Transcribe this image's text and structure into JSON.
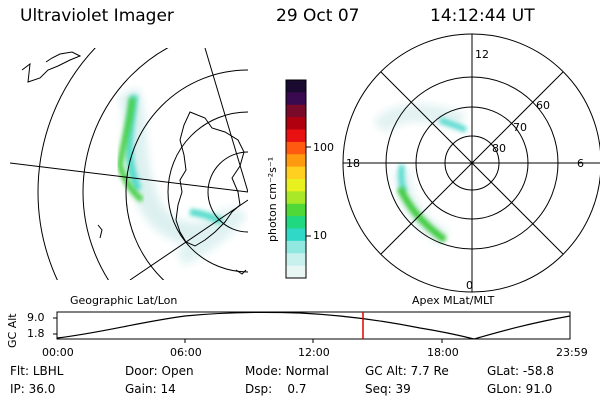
{
  "header": {
    "instrument": "Ultraviolet Imager",
    "date": "29 Oct 07",
    "time": "14:12:44 UT"
  },
  "left_map": {
    "label": "Geographic Lat/Lon"
  },
  "right_map": {
    "label": "Apex MLat/MLT",
    "mlt_labels": [
      "12",
      "18",
      "6",
      "0"
    ],
    "lat_labels": [
      "60",
      "70",
      "80"
    ]
  },
  "colorbar": {
    "unit_label": "photon cm⁻²s⁻¹",
    "ticks": [
      "100",
      "10"
    ],
    "colors": [
      "#1a0a30",
      "#3a0a50",
      "#7a0a2a",
      "#b00010",
      "#e81010",
      "#ff5a10",
      "#ff9a10",
      "#ffd020",
      "#e8f020",
      "#a8e828",
      "#50d838",
      "#20d880",
      "#30d8c8",
      "#90e8e0",
      "#c8f0ec",
      "#e8f6f4"
    ]
  },
  "timeline": {
    "y_axis_label": "GC Alt",
    "y_ticks": [
      "9.0",
      "1.8"
    ],
    "x_ticks": [
      "00:00",
      "06:00",
      "12:00",
      "18:00",
      "23:59"
    ],
    "current_marker_color": "#e00000"
  },
  "status": {
    "row1": [
      {
        "label": "Flt:",
        "value": "LBHL"
      },
      {
        "label": "Door:",
        "value": "Open"
      },
      {
        "label": "Mode:",
        "value": "Normal"
      },
      {
        "label": "GC Alt:",
        "value": "7.7 Re"
      },
      {
        "label": "GLat:",
        "value": "-58.8"
      }
    ],
    "row2": [
      {
        "label": "IP:",
        "value": "36.0"
      },
      {
        "label": "Gain:",
        "value": "14"
      },
      {
        "label": "Dsp:",
        "value": "0.7"
      },
      {
        "label": "Seq:",
        "value": "39"
      },
      {
        "label": "GLon:",
        "value": "91.0"
      }
    ]
  }
}
